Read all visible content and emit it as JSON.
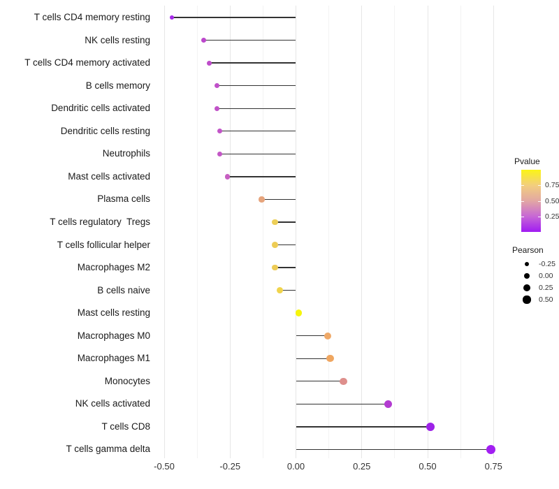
{
  "chart_data": {
    "type": "lollipop",
    "title": "",
    "xlabel": "",
    "ylabel": "",
    "x_axis": {
      "ticks": [
        -0.5,
        -0.25,
        0.0,
        0.25,
        0.5,
        0.75
      ],
      "tick_labels": [
        "-0.50",
        "-0.25",
        "0.00",
        "0.25",
        "0.50",
        "0.75"
      ],
      "xlim": [
        -0.54,
        0.8
      ]
    },
    "points": [
      {
        "label": "T cells CD4 memory resting",
        "pearson": -0.47,
        "pvalue_approx": 0.05,
        "color": "#a62be8"
      },
      {
        "label": "NK cells resting",
        "pearson": -0.35,
        "pvalue_approx": 0.22,
        "color": "#bc48cc"
      },
      {
        "label": "T cells CD4 memory activated",
        "pearson": -0.33,
        "pvalue_approx": 0.23,
        "color": "#be4cca"
      },
      {
        "label": "B cells memory",
        "pearson": -0.3,
        "pvalue_approx": 0.25,
        "color": "#c050c9"
      },
      {
        "label": "Dendritic cells activated",
        "pearson": -0.3,
        "pvalue_approx": 0.25,
        "color": "#c152c8"
      },
      {
        "label": "Dendritic cells resting",
        "pearson": -0.29,
        "pvalue_approx": 0.26,
        "color": "#c255c8"
      },
      {
        "label": "Neutrophils",
        "pearson": -0.29,
        "pvalue_approx": 0.27,
        "color": "#c357c6"
      },
      {
        "label": "Mast cells activated",
        "pearson": -0.26,
        "pvalue_approx": 0.3,
        "color": "#c75fc2"
      },
      {
        "label": "Plasma cells",
        "pearson": -0.13,
        "pvalue_approx": 0.55,
        "color": "#e6a47c"
      },
      {
        "label": "T cells regulatory  Tregs",
        "pearson": -0.08,
        "pvalue_approx": 0.72,
        "color": "#edcf58"
      },
      {
        "label": "T cells follicular helper",
        "pearson": -0.08,
        "pvalue_approx": 0.73,
        "color": "#edcc55"
      },
      {
        "label": "Macrophages M2",
        "pearson": -0.08,
        "pvalue_approx": 0.73,
        "color": "#edcb55"
      },
      {
        "label": "B cells naive",
        "pearson": -0.06,
        "pvalue_approx": 0.78,
        "color": "#f0d44c"
      },
      {
        "label": "Mast cells resting",
        "pearson": 0.01,
        "pvalue_approx": 0.95,
        "color": "#f6f50c"
      },
      {
        "label": "Macrophages M0",
        "pearson": 0.12,
        "pvalue_approx": 0.62,
        "color": "#efa968"
      },
      {
        "label": "Macrophages M1",
        "pearson": 0.13,
        "pvalue_approx": 0.62,
        "color": "#efa660"
      },
      {
        "label": "Monocytes",
        "pearson": 0.18,
        "pvalue_approx": 0.5,
        "color": "#de8f8c"
      },
      {
        "label": "NK cells activated",
        "pearson": 0.35,
        "pvalue_approx": 0.15,
        "color": "#b33bd1"
      },
      {
        "label": "T cells CD8",
        "pearson": 0.51,
        "pvalue_approx": 0.05,
        "color": "#9d22e8"
      },
      {
        "label": "T cells gamma delta",
        "pearson": 0.74,
        "pvalue_approx": 0.03,
        "color": "#a21ff2"
      }
    ],
    "legend_pvalue": {
      "title": "Pvalue",
      "ticks": [
        0.75,
        0.5,
        0.25
      ],
      "tick_labels": [
        "0.75",
        "0.50",
        "0.25"
      ],
      "range": [
        0,
        1
      ],
      "gradient_top_to_bottom": [
        "#fbf515",
        "#f2ce7e",
        "#e2a7a3",
        "#c767d5",
        "#a01bf2"
      ]
    },
    "legend_pearson": {
      "title": "Pearson",
      "sizes": [
        -0.25,
        0.0,
        0.25,
        0.5
      ],
      "size_labels": [
        "-0.25",
        "0.00",
        "0.25",
        "0.50"
      ],
      "dot_color": "#000000"
    },
    "layout": {
      "grid": true,
      "legend_position": "right",
      "background": "#ffffff",
      "stem_color": "#333333"
    }
  }
}
